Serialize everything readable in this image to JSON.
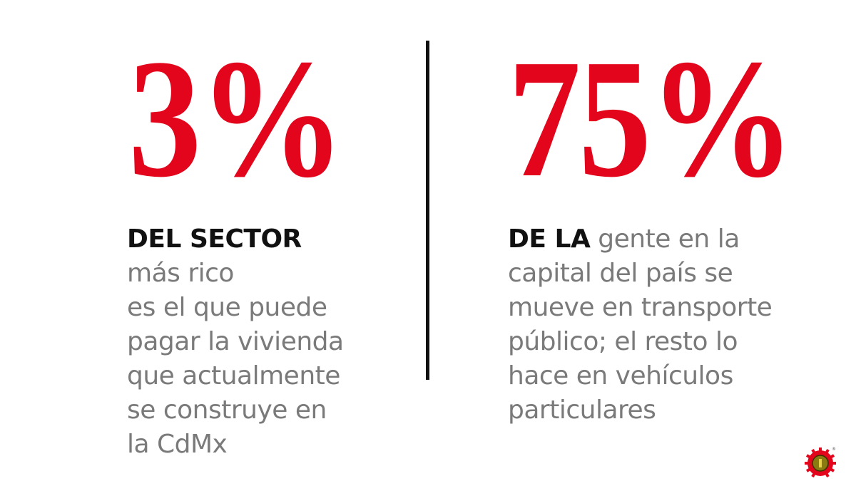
{
  "left": {
    "stat": "3%",
    "lead": "DEL SECTOR",
    "lines": [
      "más rico",
      "es el que puede",
      "pagar la vivienda",
      "que actualmente",
      "se construye en",
      "la CdMx"
    ]
  },
  "right": {
    "stat": "75%",
    "lead": "DE LA",
    "first_line_rest": " gente en la",
    "lines": [
      "capital del país se",
      "mueve en transporte",
      "público; el resto lo",
      "hace en vehículos",
      "particulares"
    ]
  },
  "colors": {
    "accent": "#e3051b",
    "text": "#7a7a7a",
    "lead": "#111111"
  },
  "logo": {
    "icon": "sun-emblem-logo",
    "mark": "®"
  }
}
